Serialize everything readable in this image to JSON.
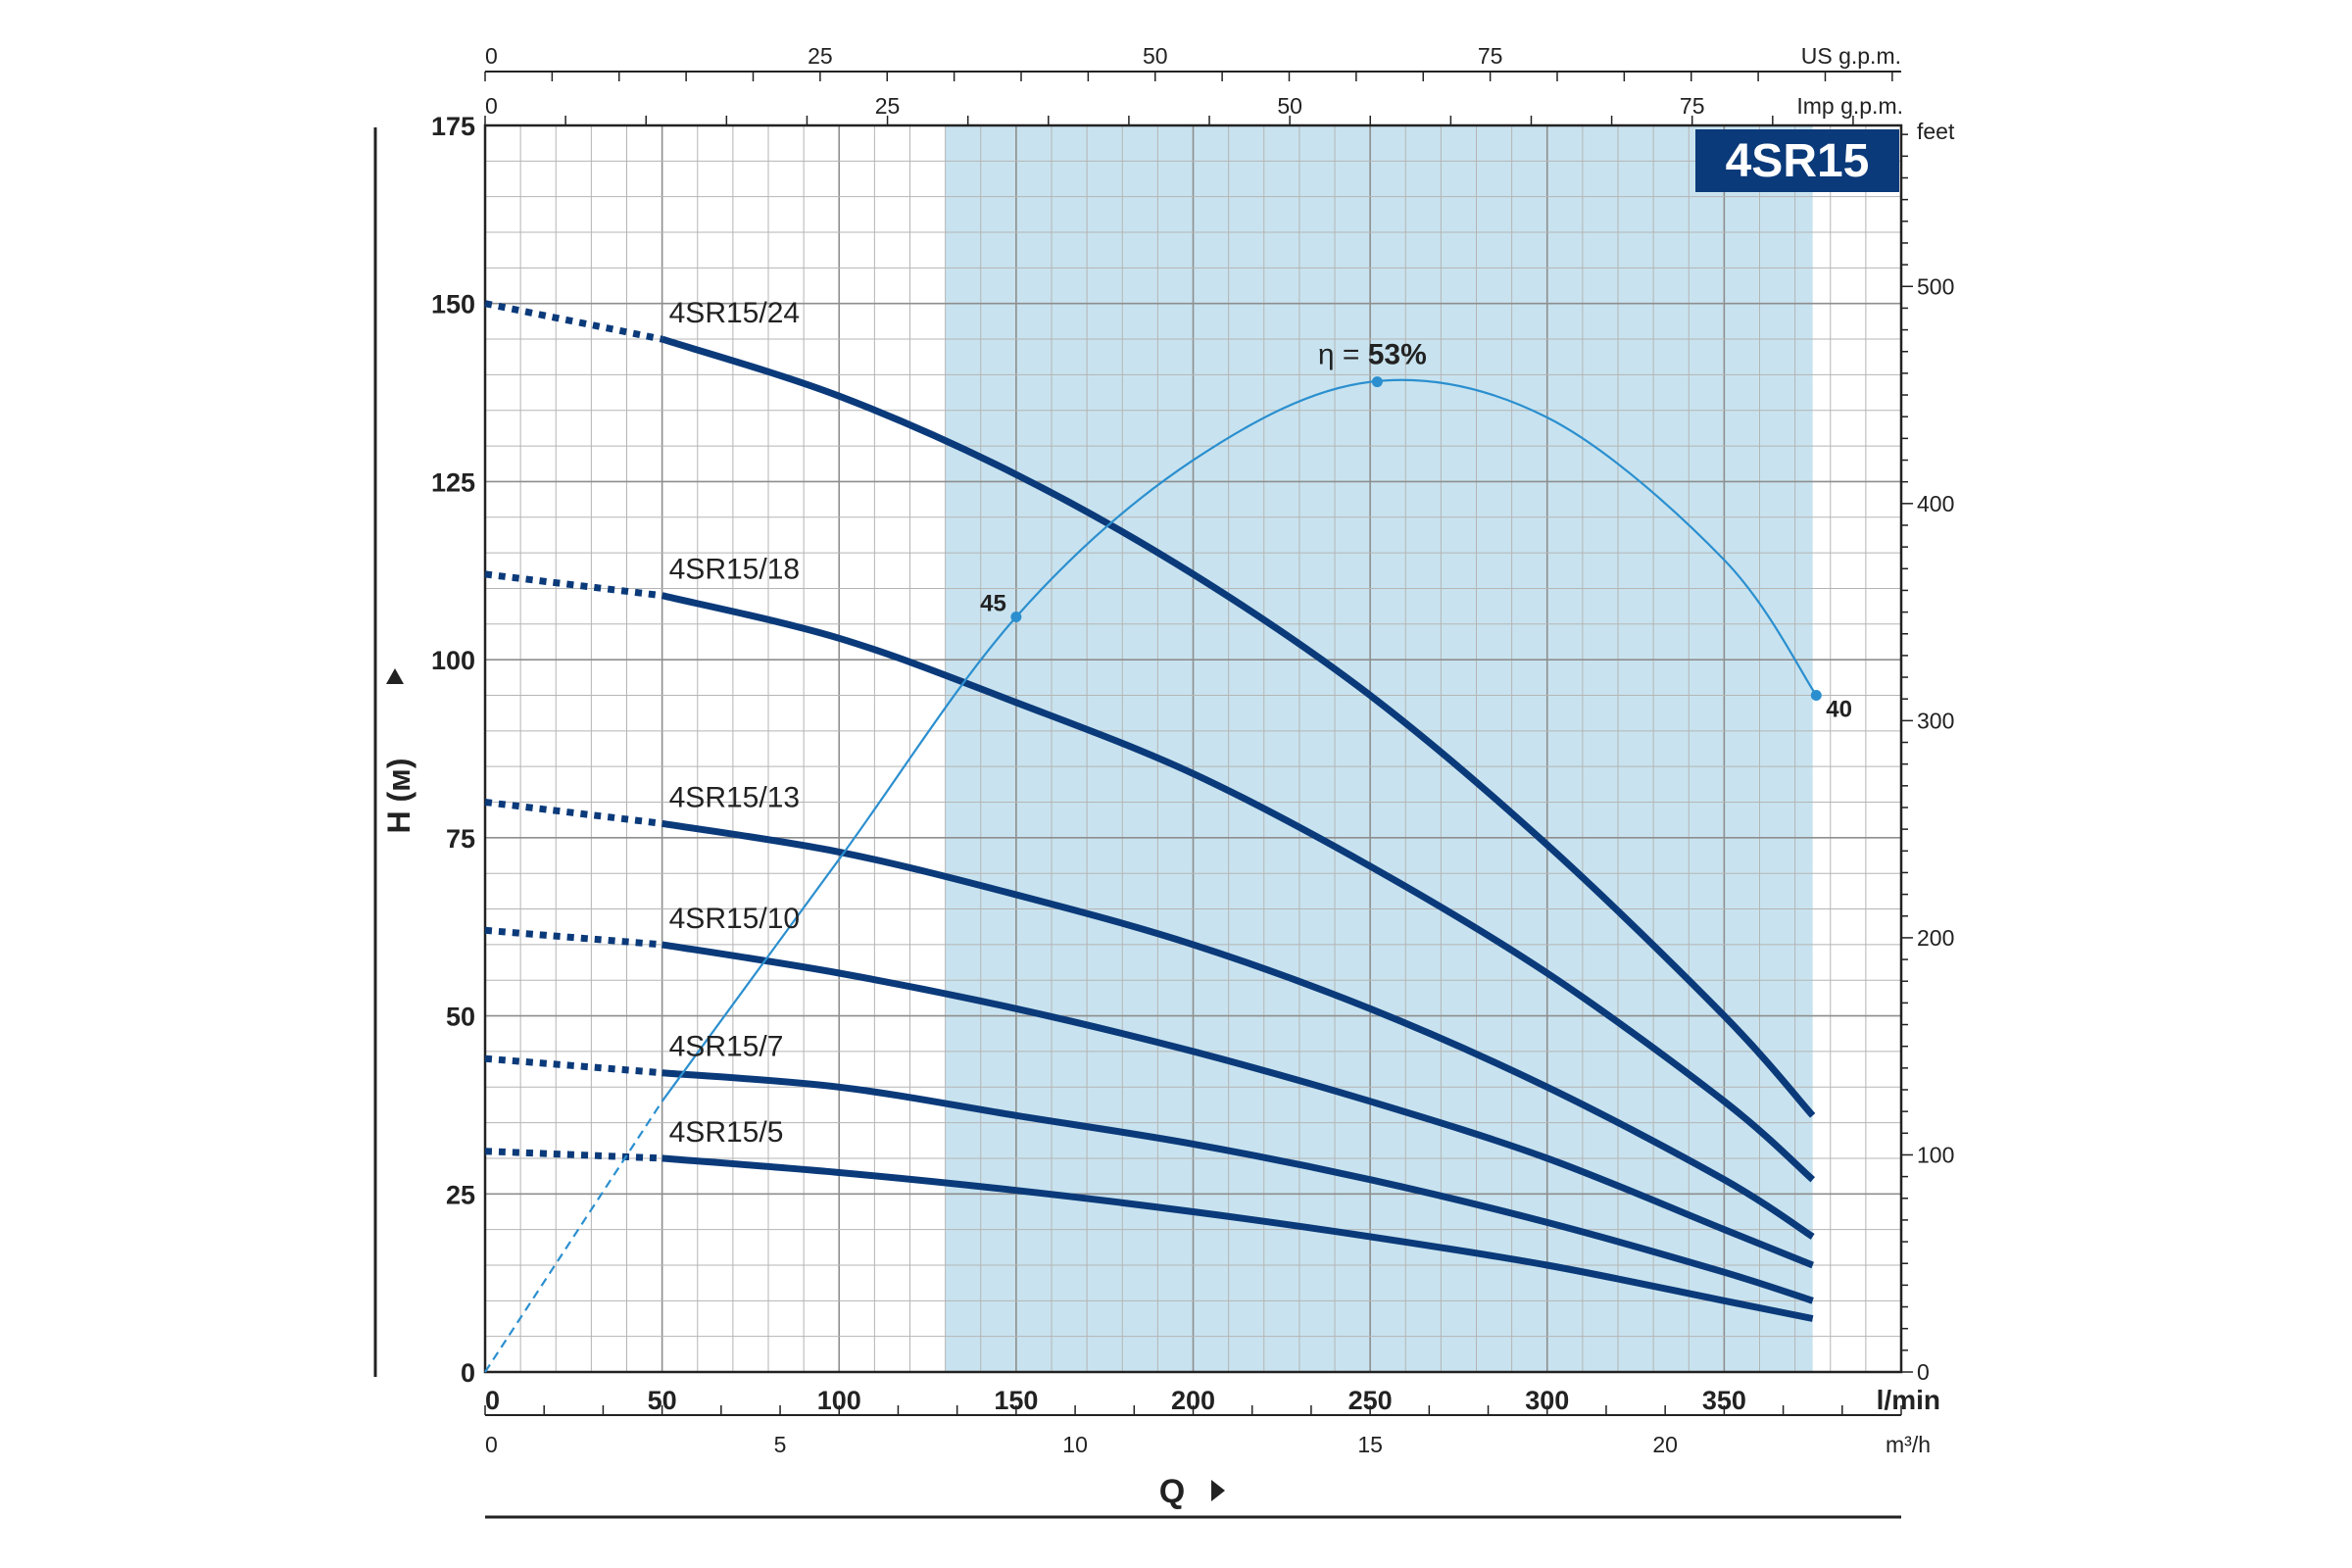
{
  "chart_data": {
    "type": "line",
    "model_badge": "4SR15",
    "xlabel": "Q",
    "ylabel": "H (м)",
    "x_unit": "l/min",
    "x_ticks": [
      0,
      50,
      100,
      150,
      200,
      250,
      300,
      350
    ],
    "xlim": [
      0,
      400
    ],
    "y_ticks": [
      0,
      25,
      50,
      75,
      100,
      125,
      150,
      175
    ],
    "ylim": [
      0,
      175
    ],
    "recommended_range_lmin": [
      130,
      375
    ],
    "secondary_axes": {
      "us_gpm": {
        "label": "US g.p.m.",
        "ticks": [
          0,
          25,
          50,
          75
        ]
      },
      "imp_gpm": {
        "label": "Imp g.p.m.",
        "ticks": [
          0,
          25,
          50,
          75
        ]
      },
      "m3h": {
        "label": "m³/h",
        "ticks": [
          0,
          5,
          10,
          15,
          20
        ]
      },
      "feet": {
        "label": "feet",
        "ticks": [
          0,
          100,
          200,
          300,
          400,
          500
        ]
      }
    },
    "series": [
      {
        "name": "4SR15/24",
        "x": [
          0,
          50,
          100,
          150,
          200,
          250,
          300,
          350,
          375
        ],
        "y": [
          150,
          145,
          137,
          126,
          112,
          95,
          74,
          50,
          36
        ]
      },
      {
        "name": "4SR15/18",
        "x": [
          0,
          50,
          100,
          150,
          200,
          250,
          300,
          350,
          375
        ],
        "y": [
          112,
          109,
          103,
          94,
          84,
          71,
          56,
          38,
          27
        ]
      },
      {
        "name": "4SR15/13",
        "x": [
          0,
          50,
          100,
          150,
          200,
          250,
          300,
          350,
          375
        ],
        "y": [
          80,
          77,
          73,
          67,
          60,
          51,
          40,
          27,
          19
        ]
      },
      {
        "name": "4SR15/10",
        "x": [
          0,
          50,
          100,
          150,
          200,
          250,
          300,
          350,
          375
        ],
        "y": [
          62,
          60,
          56,
          51,
          45,
          38,
          30,
          20,
          15
        ]
      },
      {
        "name": "4SR15/7",
        "x": [
          0,
          50,
          100,
          150,
          200,
          250,
          300,
          350,
          375
        ],
        "y": [
          44,
          42,
          40,
          36,
          32,
          27,
          21,
          14,
          10
        ]
      },
      {
        "name": "4SR15/5",
        "x": [
          0,
          50,
          100,
          150,
          200,
          250,
          300,
          350,
          375
        ],
        "y": [
          31,
          30,
          28,
          25.5,
          22.5,
          19,
          15,
          10,
          7.5
        ]
      }
    ],
    "efficiency_curve": {
      "x": [
        0,
        50,
        100,
        150,
        200,
        250,
        300,
        350,
        376
      ],
      "y": [
        0,
        38,
        72,
        106,
        128,
        139,
        134,
        114,
        95
      ],
      "labels": [
        {
          "text": "45",
          "x": 150,
          "y": 106
        },
        {
          "text": "η = ",
          "bold_text": "53%",
          "x": 252,
          "y": 139
        },
        {
          "text": "40",
          "x": 376,
          "y": 95
        }
      ]
    }
  }
}
